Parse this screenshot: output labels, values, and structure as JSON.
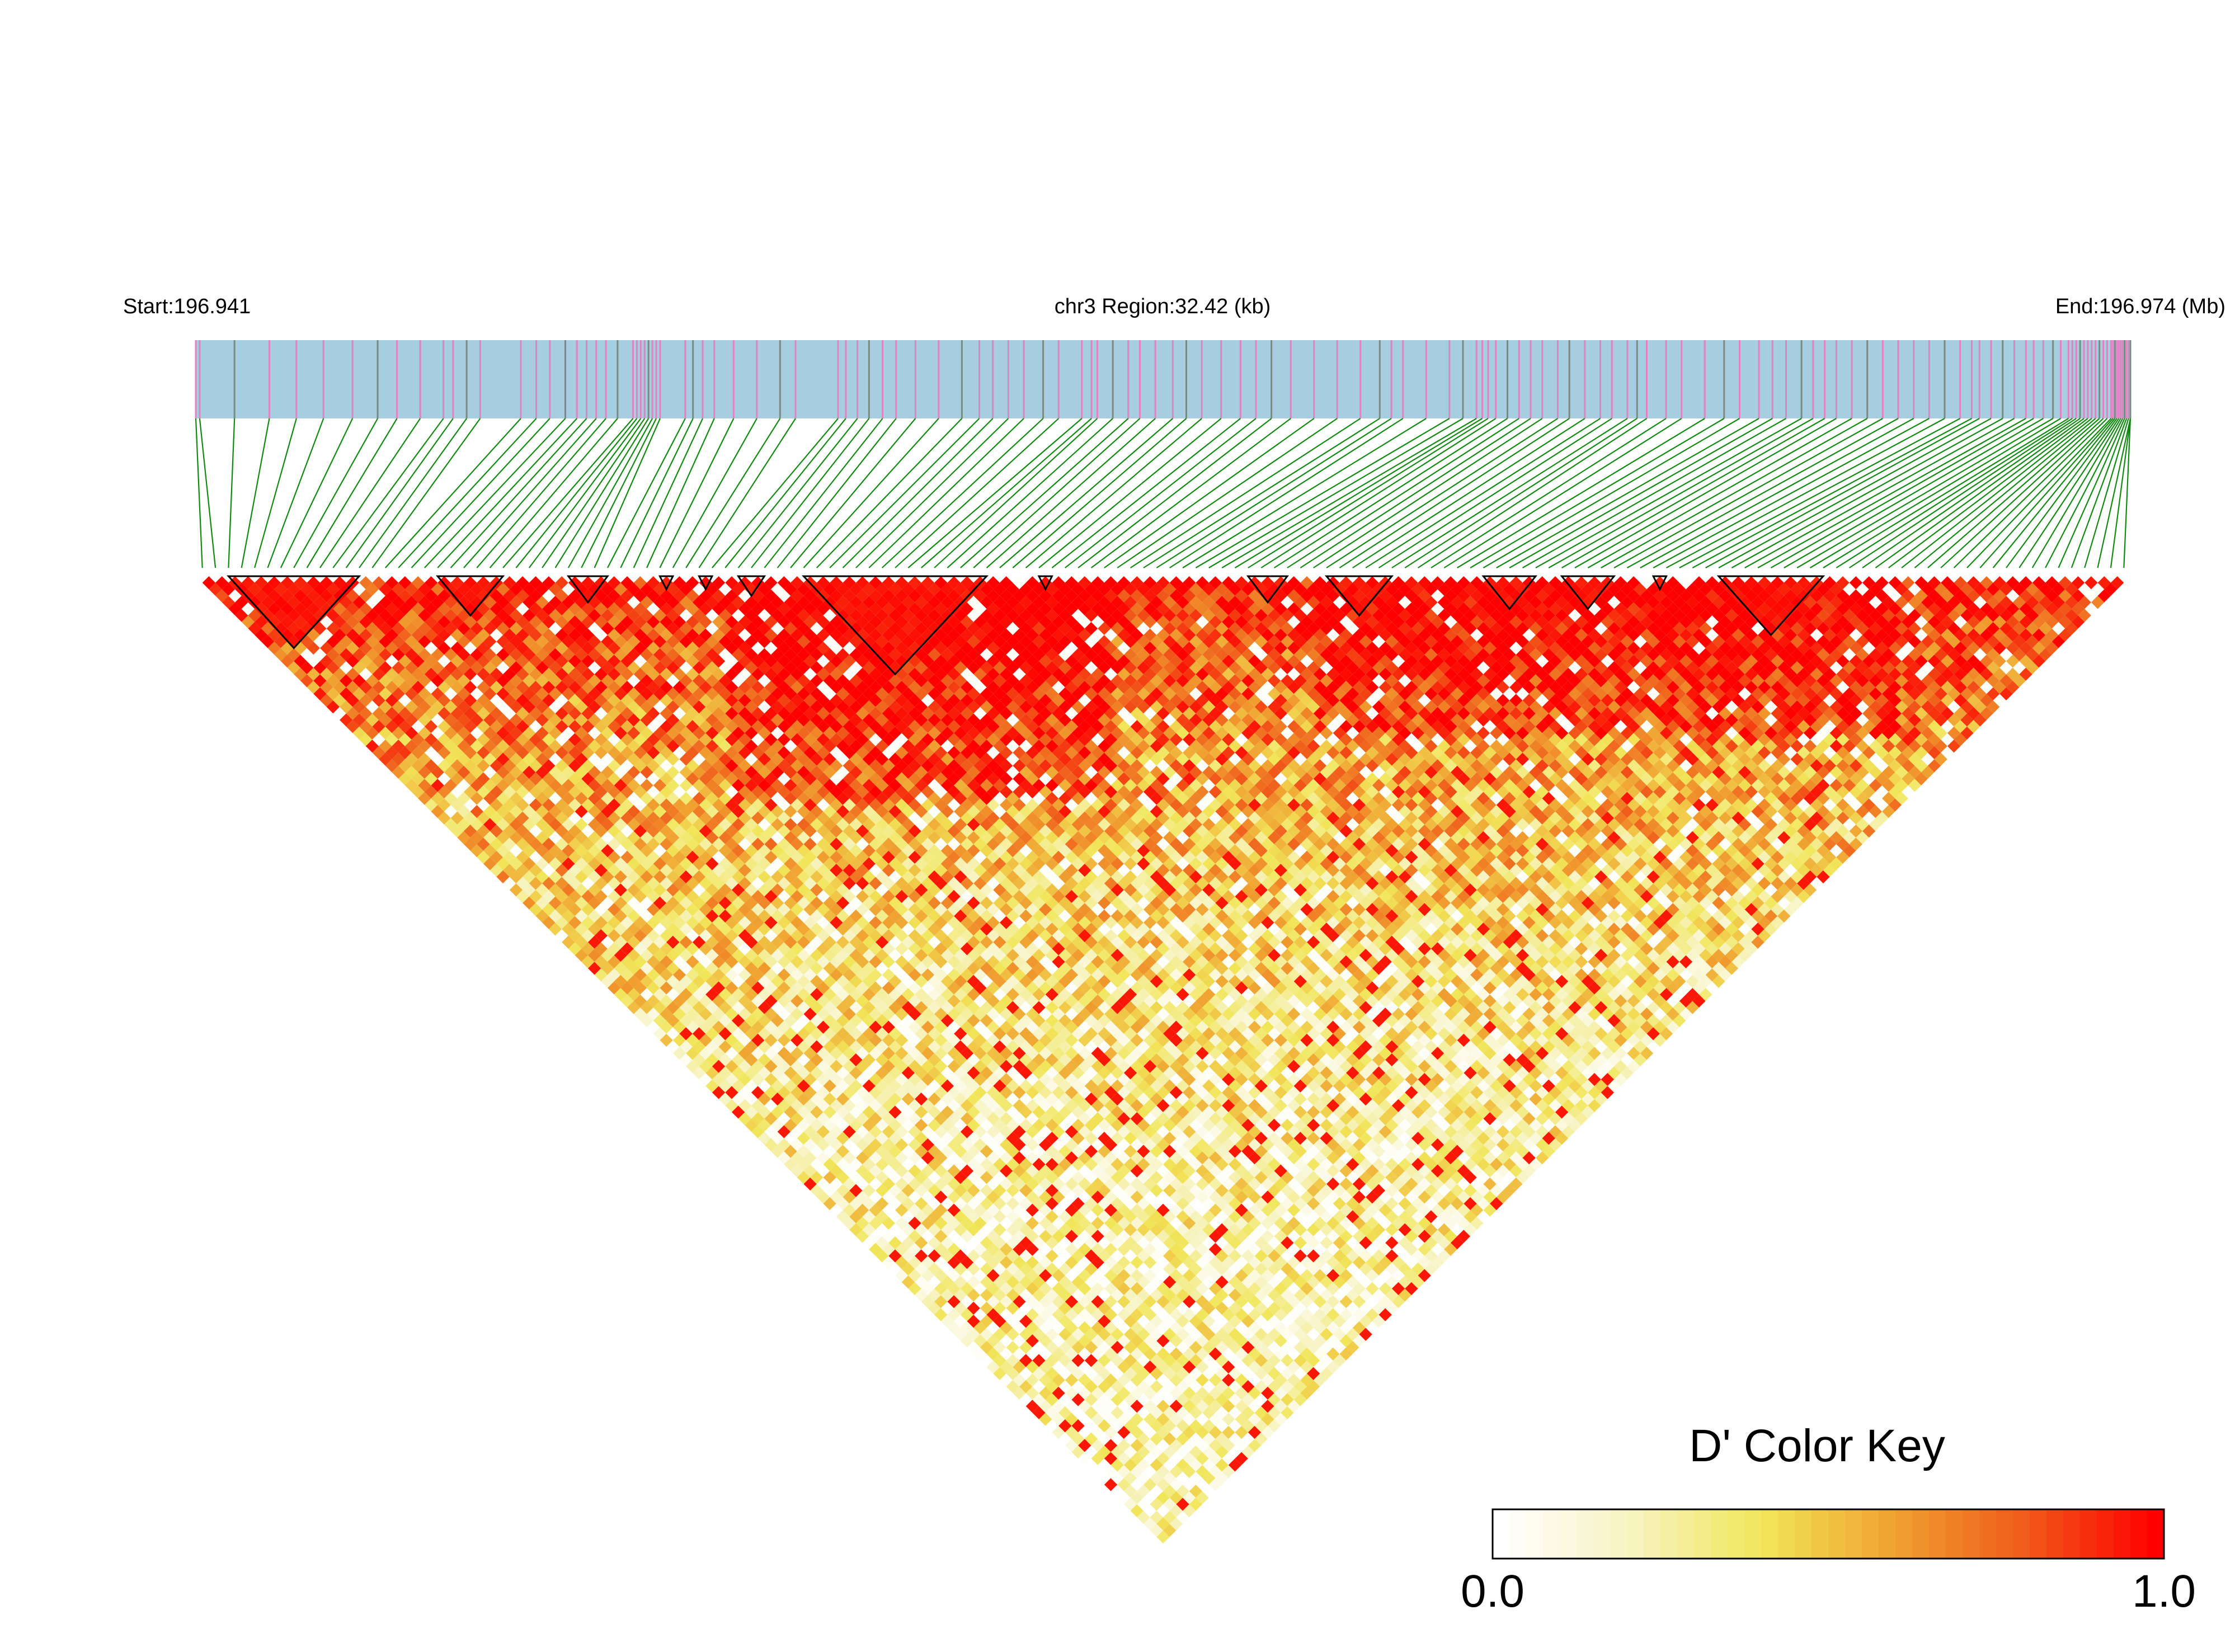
{
  "header": {
    "start_label": "Start:196.941",
    "region_label": "chr3 Region:32.42 (kb)",
    "end_label": "End:196.974 (Mb)"
  },
  "colors": {
    "track_fill": "#a7cde0",
    "track_marker": "#e083c0",
    "track_marker_dark": "#7b8a80",
    "connector": "#0f8a0f",
    "block_outline": "#000000",
    "scale": [
      "#ffffff",
      "#f7f3c0",
      "#f1e65a",
      "#f0a030",
      "#f05a1a",
      "#ff0000"
    ]
  },
  "color_key": {
    "title": "D' Color Key",
    "min_label": "0.0",
    "max_label": "1.0"
  },
  "chart_data": {
    "type": "heatmap",
    "title": "",
    "region": {
      "chromosome": "chr3",
      "start_mb": 196.941,
      "end_mb": 196.974,
      "length_kb": 32.42
    },
    "n_snps": 148,
    "value_range": [
      0,
      1
    ],
    "snp_positions_fraction": [
      0.0,
      0.002,
      0.02,
      0.038,
      0.052,
      0.066,
      0.081,
      0.094,
      0.104,
      0.116,
      0.128,
      0.133,
      0.14,
      0.147,
      0.168,
      0.176,
      0.183,
      0.191,
      0.197,
      0.202,
      0.207,
      0.212,
      0.218,
      0.226,
      0.228,
      0.23,
      0.232,
      0.234,
      0.236,
      0.238,
      0.24,
      0.253,
      0.257,
      0.262,
      0.268,
      0.278,
      0.29,
      0.302,
      0.31,
      0.332,
      0.336,
      0.342,
      0.348,
      0.355,
      0.362,
      0.372,
      0.384,
      0.396,
      0.405,
      0.412,
      0.42,
      0.428,
      0.438,
      0.446,
      0.458,
      0.463,
      0.466,
      0.474,
      0.482,
      0.488,
      0.496,
      0.505,
      0.512,
      0.52,
      0.53,
      0.54,
      0.548,
      0.556,
      0.566,
      0.578,
      0.59,
      0.602,
      0.612,
      0.618,
      0.624,
      0.636,
      0.648,
      0.655,
      0.662,
      0.665,
      0.668,
      0.672,
      0.678,
      0.684,
      0.69,
      0.696,
      0.704,
      0.71,
      0.718,
      0.726,
      0.732,
      0.74,
      0.745,
      0.75,
      0.76,
      0.768,
      0.78,
      0.79,
      0.798,
      0.808,
      0.815,
      0.822,
      0.83,
      0.836,
      0.842,
      0.848,
      0.856,
      0.864,
      0.872,
      0.88,
      0.888,
      0.896,
      0.904,
      0.912,
      0.918,
      0.922,
      0.928,
      0.934,
      0.94,
      0.946,
      0.95,
      0.955,
      0.96,
      0.964,
      0.968,
      0.97,
      0.972,
      0.974,
      0.976,
      0.978,
      0.98,
      0.982,
      0.984,
      0.986,
      0.988,
      0.99,
      0.991,
      0.992,
      0.993,
      0.994,
      0.995,
      0.996,
      0.997,
      0.998,
      0.999,
      1.0,
      1.0,
      1.0
    ],
    "haplotype_blocks": [
      [
        2,
        12
      ],
      [
        18,
        23
      ],
      [
        28,
        31
      ],
      [
        35,
        36
      ],
      [
        38,
        39
      ],
      [
        41,
        43
      ],
      [
        46,
        60
      ],
      [
        64,
        65
      ],
      [
        80,
        83
      ],
      [
        86,
        91
      ],
      [
        98,
        102
      ],
      [
        104,
        108
      ],
      [
        111,
        112
      ],
      [
        116,
        124
      ]
    ],
    "blocks_outlined": true,
    "legend": {
      "title": "D' Color Key",
      "placement": "bottom-right"
    }
  }
}
